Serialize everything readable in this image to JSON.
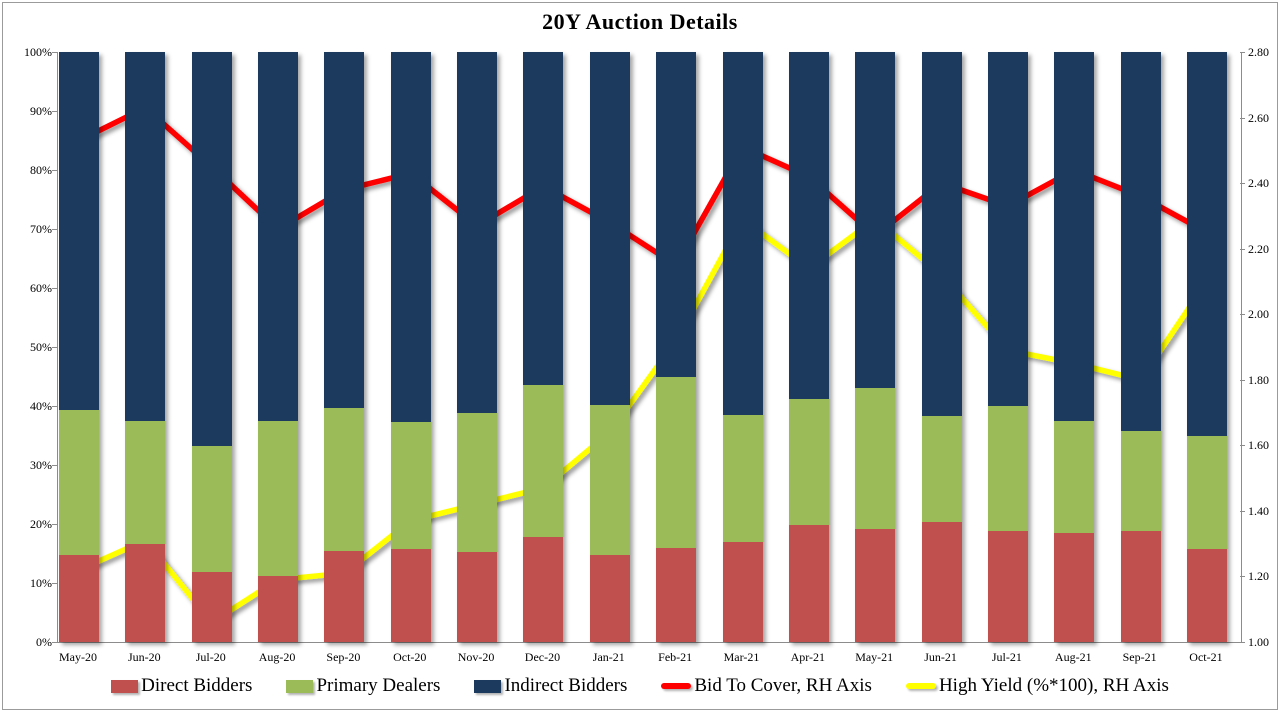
{
  "page": {
    "title": "20Y Auction Details"
  },
  "chart_data": {
    "type": "bar",
    "subtype": "100%-stacked-bars-with-two-lines",
    "title": "20Y Auction Details",
    "categories": [
      "May-20",
      "Jun-20",
      "Jul-20",
      "Aug-20",
      "Sep-20",
      "Oct-20",
      "Nov-20",
      "Dec-20",
      "Jan-21",
      "Feb-21",
      "Mar-21",
      "Apr-21",
      "May-21",
      "Jun-21",
      "Jul-21",
      "Aug-21",
      "Sep-21",
      "Oct-21"
    ],
    "stacked_bar_series": [
      {
        "name": "Direct Bidders",
        "axis": "left",
        "unit": "%",
        "color": "#C0504D",
        "values": [
          14.7,
          16.6,
          11.8,
          11.2,
          15.4,
          15.8,
          15.3,
          17.8,
          14.7,
          16.0,
          16.9,
          19.8,
          19.2,
          20.4,
          18.8,
          18.5,
          18.8,
          15.7
        ]
      },
      {
        "name": "Primary Dealers",
        "axis": "left",
        "unit": "%",
        "color": "#9BBB59",
        "values": [
          24.6,
          20.8,
          21.5,
          26.3,
          24.2,
          21.5,
          23.6,
          25.8,
          25.5,
          29.0,
          21.6,
          21.4,
          23.9,
          17.9,
          21.2,
          19.0,
          17.0,
          19.3
        ]
      },
      {
        "name": "Indirect Bidders",
        "axis": "left",
        "unit": "%",
        "color": "#1C3A5E",
        "values": [
          60.7,
          62.6,
          66.7,
          62.5,
          60.4,
          62.7,
          61.1,
          56.4,
          59.8,
          55.0,
          61.5,
          58.8,
          56.9,
          61.7,
          60.0,
          62.5,
          64.2,
          65.0
        ]
      }
    ],
    "line_series": [
      {
        "name": "Bid To Cover, RH Axis",
        "axis": "right",
        "color": "#FF0000",
        "values": [
          2.53,
          2.63,
          2.45,
          2.26,
          2.38,
          2.43,
          2.27,
          2.39,
          2.28,
          2.15,
          2.51,
          2.42,
          2.24,
          2.4,
          2.33,
          2.44,
          2.36,
          2.25
        ]
      },
      {
        "name": "High Yield (%*100), RH Axis",
        "axis": "right",
        "color": "#FFFF00",
        "values": [
          1.22,
          1.31,
          1.06,
          1.19,
          1.21,
          1.37,
          1.42,
          1.47,
          1.64,
          1.92,
          2.29,
          2.14,
          2.29,
          2.12,
          1.89,
          1.85,
          1.8,
          2.1
        ]
      }
    ],
    "left_axis": {
      "min": 0,
      "max": 100,
      "tick_labels_top_down": [
        "100%",
        "90%",
        "80%",
        "70%",
        "60%",
        "50%",
        "40%",
        "30%",
        "20%",
        "10%",
        "0%"
      ]
    },
    "right_axis": {
      "min": 1.0,
      "max": 2.8,
      "tick_labels_top_down": [
        "2.80",
        "2.60",
        "2.40",
        "2.20",
        "2.00",
        "1.80",
        "1.60",
        "1.40",
        "1.20",
        "1.00"
      ]
    },
    "grid": false,
    "legend_position": "bottom"
  }
}
